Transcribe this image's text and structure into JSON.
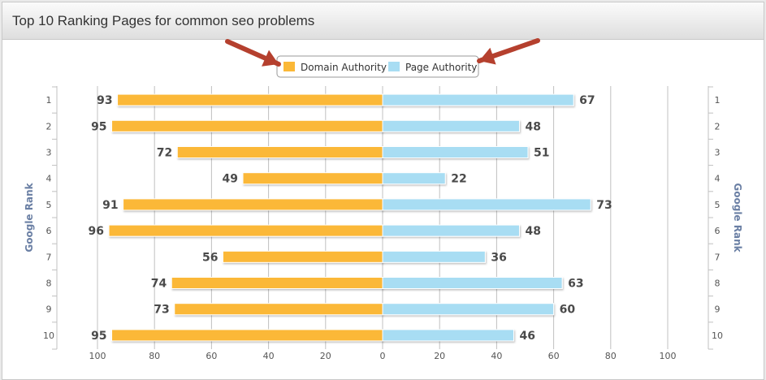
{
  "header": {
    "title": "Top 10 Ranking Pages for common seo problems"
  },
  "colors": {
    "domain": "#fbb837",
    "page": "#a8ddf3",
    "grid": "#c0c0c0",
    "arrow": "#b5402e",
    "axis_title": "#6a7fa4"
  },
  "chart_data": {
    "type": "bar",
    "orientation": "horizontal",
    "layout": "diverging",
    "categories": [
      "1",
      "2",
      "3",
      "4",
      "5",
      "6",
      "7",
      "8",
      "9",
      "10"
    ],
    "series": [
      {
        "name": "Domain Authority",
        "values": [
          93,
          95,
          72,
          49,
          91,
          96,
          56,
          74,
          73,
          95
        ],
        "side": "left"
      },
      {
        "name": "Page Authority",
        "values": [
          67,
          48,
          51,
          22,
          73,
          48,
          36,
          63,
          60,
          46
        ],
        "side": "right"
      }
    ],
    "x_ticks": [
      {
        "label": "100",
        "v": -100
      },
      {
        "label": "80",
        "v": -80
      },
      {
        "label": "60",
        "v": -60
      },
      {
        "label": "40",
        "v": -40
      },
      {
        "label": "20",
        "v": -20
      },
      {
        "label": "0",
        "v": 0
      },
      {
        "label": "20",
        "v": 20
      },
      {
        "label": "40",
        "v": 40
      },
      {
        "label": "60",
        "v": 60
      },
      {
        "label": "80",
        "v": 80
      },
      {
        "label": "100",
        "v": 100
      }
    ],
    "xlim": [
      -100,
      100
    ],
    "ylabel_left": "Google Rank",
    "ylabel_right": "Google Rank",
    "grid": true,
    "legend": "top-center"
  }
}
